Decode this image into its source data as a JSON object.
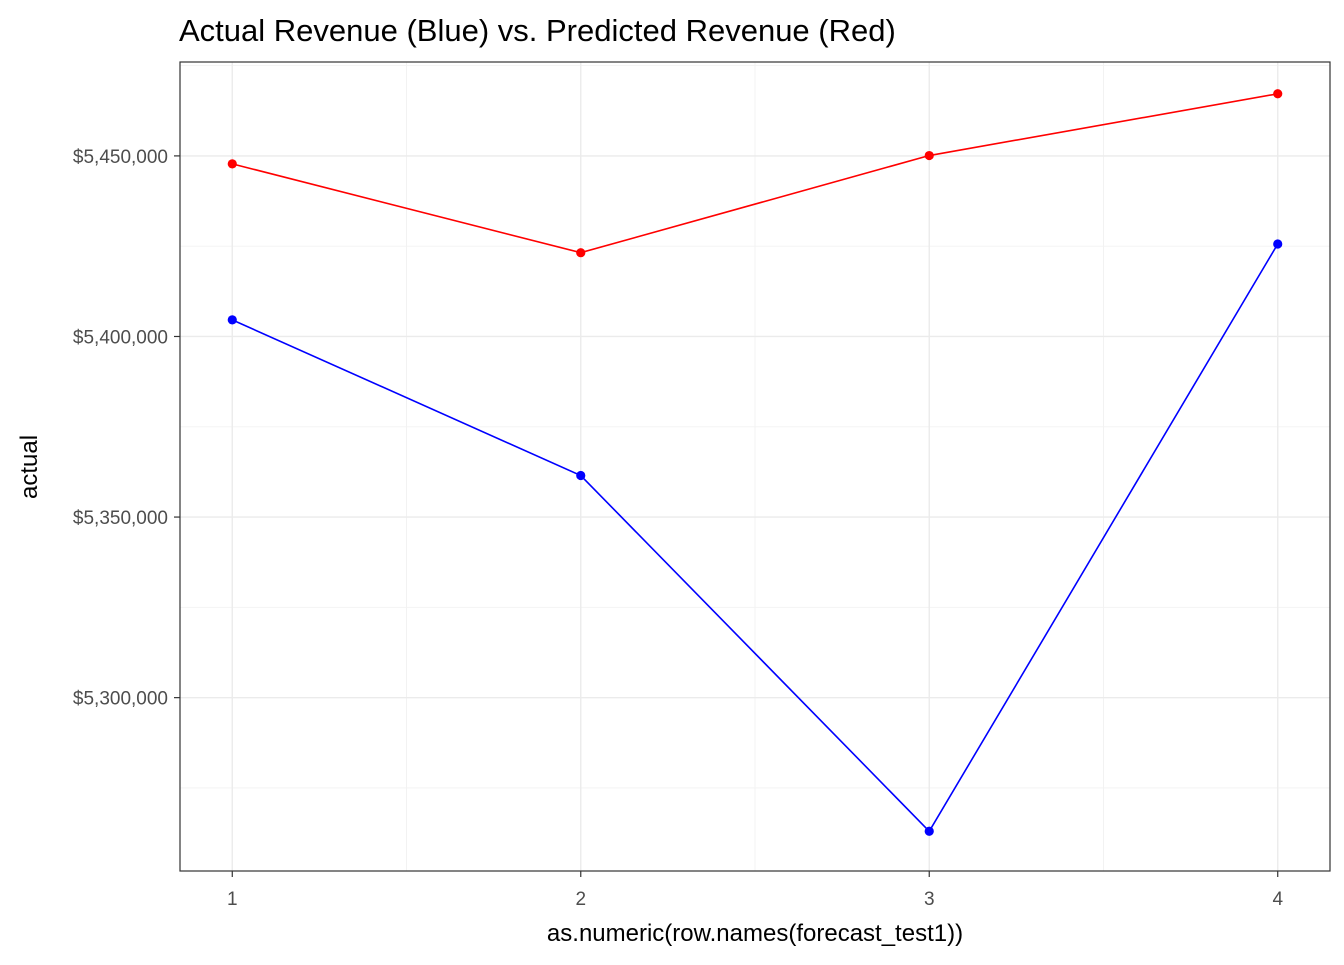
{
  "chart_data": {
    "type": "line",
    "title": "Actual Revenue (Blue) vs. Predicted Revenue (Red)",
    "xlabel": "as.numeric(row.names(forecast_test1))",
    "ylabel": "actual",
    "x": [
      1,
      2,
      3,
      4
    ],
    "x_ticks": [
      1,
      2,
      3,
      4
    ],
    "x_tick_labels": [
      "1",
      "2",
      "3",
      "4"
    ],
    "xlim": [
      0.85,
      4.15
    ],
    "y_ticks": [
      5300000,
      5350000,
      5400000,
      5450000
    ],
    "y_tick_labels": [
      "$5,300,000",
      "$5,350,000",
      "$5,400,000",
      "$5,450,000"
    ],
    "ylim": [
      5252000,
      5476000
    ],
    "grid": true,
    "legend": "none",
    "series": [
      {
        "color": "#0000ff",
        "values": [
          5404600,
          5361500,
          5263000,
          5425600
        ]
      },
      {
        "color": "#ff0000",
        "values": [
          5447800,
          5423200,
          5450100,
          5467200
        ]
      }
    ]
  }
}
